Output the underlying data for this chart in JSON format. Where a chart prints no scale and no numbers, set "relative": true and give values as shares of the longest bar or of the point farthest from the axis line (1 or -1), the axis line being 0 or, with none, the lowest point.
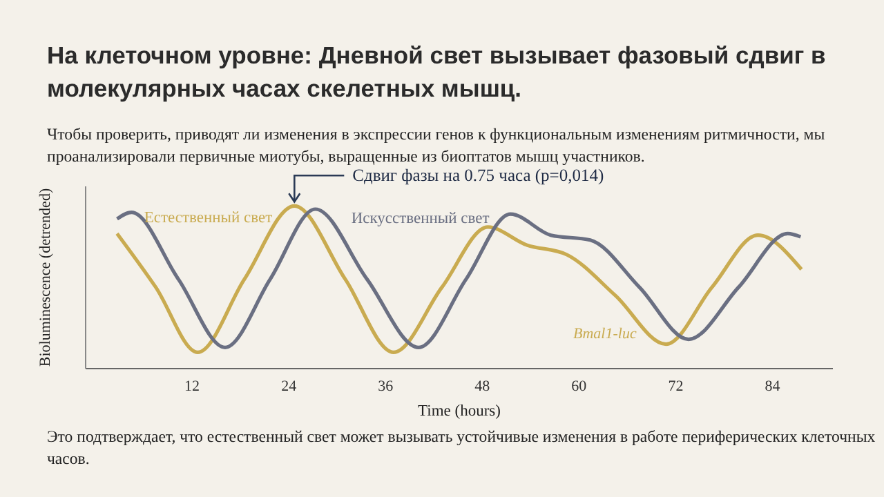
{
  "chart_data": {
    "type": "line",
    "title": "На клеточном уровне: Дневной свет вызывает фазовый сдвиг в молекулярных часах скелетных мышц.",
    "subtitle": "Чтобы проверить, приводят ли изменения в экспрессии генов к функциональным изменениям ритмичности, мы проанализировали первичные миотубы, выращенные из биоптатов мышц участников.",
    "xlabel": "Time (hours)",
    "ylabel": "Bioluminescence (detrended)",
    "relative": true,
    "xlim": [
      -1.2,
      91.5
    ],
    "xticks": [
      12,
      24,
      36,
      48,
      60,
      72,
      84
    ],
    "legend": false,
    "series": [
      {
        "name": "Естественный свет",
        "color": "#c9ab50",
        "x": [
          2.7,
          7.5,
          12.7,
          18.5,
          24.7,
          31,
          37,
          43,
          48.7,
          53.5,
          58.5,
          64.5,
          70.8,
          76.5,
          82.2,
          87.6
        ],
        "values": [
          0.83,
          0.5,
          0.1,
          0.55,
          1.0,
          0.55,
          0.1,
          0.5,
          0.87,
          0.76,
          0.7,
          0.45,
          0.15,
          0.5,
          0.82,
          0.61
        ]
      },
      {
        "name": "Искусственный свет",
        "color": "#6a6f82",
        "x": [
          2.7,
          4.5,
          10.3,
          16.1,
          21.7,
          27.3,
          33.7,
          40.1,
          46,
          51.5,
          56.5,
          61.4,
          67.5,
          73.6,
          79.8,
          85.9,
          87.5
        ],
        "values": [
          0.92,
          0.96,
          0.55,
          0.13,
          0.55,
          0.98,
          0.55,
          0.13,
          0.55,
          0.95,
          0.82,
          0.79,
          0.5,
          0.18,
          0.5,
          0.83,
          0.81
        ]
      }
    ],
    "annotations": [
      {
        "text": "Сдвиг фазы на 0.75 часа (p=0,014)",
        "x": 24.7,
        "y": 1.0
      },
      "Bmal1-luc",
      "Это подтверждает, что естественный свет может вызывать устойчивые изменения в работе периферических клеточных часов."
    ]
  }
}
